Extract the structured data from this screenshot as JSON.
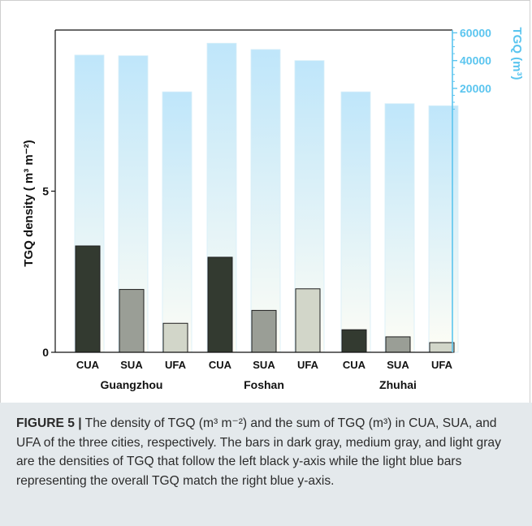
{
  "chart_data": {
    "type": "bar",
    "groups": [
      "Guangzhou",
      "Foshan",
      "Zhuhai"
    ],
    "categories": [
      "CUA",
      "SUA",
      "UFA"
    ],
    "series": [
      {
        "axis": "left",
        "colors": [
          "#333a30",
          "#9a9e96",
          "#d2d6c9"
        ],
        "values": [
          [
            3.3,
            1.95,
            0.9
          ],
          [
            2.95,
            1.3,
            1.97
          ],
          [
            0.7,
            0.48,
            0.3
          ]
        ]
      },
      {
        "axis": "right",
        "color": "#bfe6fa",
        "values": [
          [
            44000,
            43500,
            17500
          ],
          [
            52500,
            48000,
            40000
          ],
          [
            17500,
            9000,
            7500
          ]
        ]
      }
    ],
    "left_axis": {
      "label": "TGQ density ( m³ m⁻²)",
      "ylim": [
        0,
        10
      ],
      "ticks": [
        0,
        5
      ]
    },
    "right_axis": {
      "label": "TGQ (m³)",
      "ylim": [
        -170000,
        62000
      ],
      "ticks": [
        20000,
        40000,
        60000
      ],
      "color": "#5bc5ef"
    },
    "grid": false,
    "legend": "none"
  },
  "caption": {
    "label": "FIGURE 5 |",
    "text": " The density of TGQ (m³ m⁻²) and the sum of TGQ (m³) in CUA, SUA, and UFA of the three cities, respectively. The bars in dark gray, medium gray, and light gray are the densities of TGQ that follow the left black y-axis while the light blue bars representing the overall TGQ match the right blue y-axis."
  }
}
